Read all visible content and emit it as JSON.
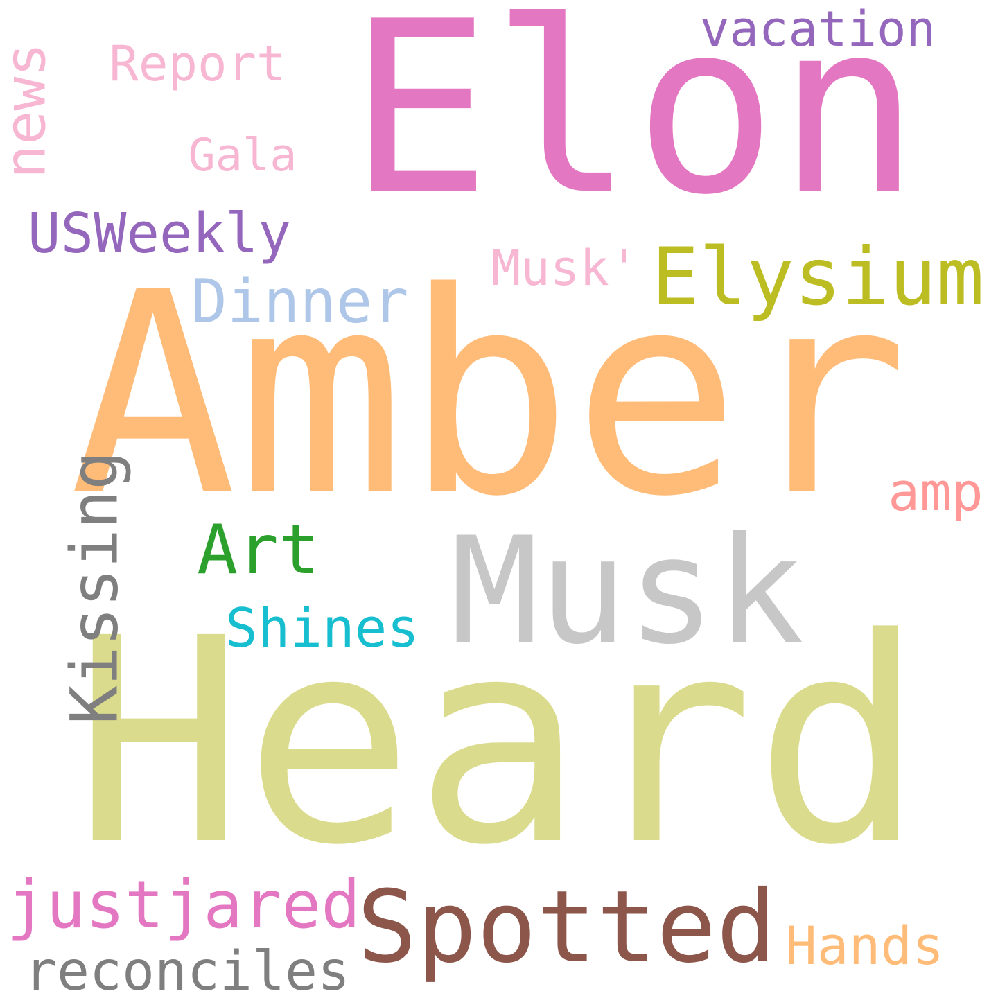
{
  "words": [
    {
      "text": "Elon",
      "color": "#e377c2"
    },
    {
      "text": "Amber",
      "color": "#ffbb78"
    },
    {
      "text": "Heard",
      "color": "#dbdb8d"
    },
    {
      "text": "Musk",
      "color": "#c7c7c7"
    },
    {
      "text": "Spotted",
      "color": "#8c564b"
    },
    {
      "text": "Elysium",
      "color": "#bcbd22"
    },
    {
      "text": "Dinner",
      "color": "#aec7e8"
    },
    {
      "text": "Kissing",
      "color": "#7f7f7f"
    },
    {
      "text": "Art",
      "color": "#2ca02c"
    },
    {
      "text": "justjared",
      "color": "#e377c2"
    },
    {
      "text": "reconciles",
      "color": "#7f7f7f"
    },
    {
      "text": "USWeekly",
      "color": "#9467bd"
    },
    {
      "text": "vacation",
      "color": "#9467bd"
    },
    {
      "text": "news",
      "color": "#f7b6d2"
    },
    {
      "text": "Report",
      "color": "#f7b6d2"
    },
    {
      "text": "Gala",
      "color": "#f7b6d2"
    },
    {
      "text": "Musk'",
      "color": "#f7b6d2"
    },
    {
      "text": "Shines",
      "color": "#17becf"
    },
    {
      "text": "amp",
      "color": "#ff9896"
    },
    {
      "text": "Hands",
      "color": "#ffbb78"
    }
  ]
}
